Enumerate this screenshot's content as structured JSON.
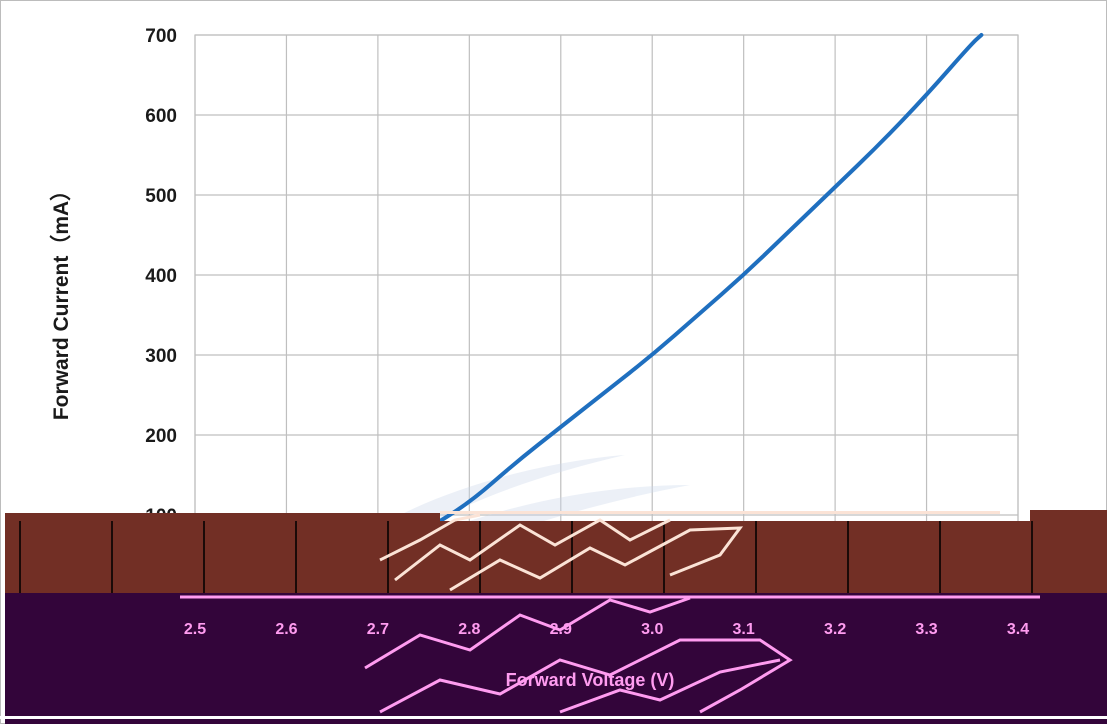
{
  "chart_data": {
    "type": "line",
    "title": "",
    "ylabel": "Forward Current（mA）",
    "xlabel": "Forward Voltage (V)",
    "ylim": [
      0,
      700
    ],
    "xlim": [
      2.5,
      3.4
    ],
    "yticks": [
      "100",
      "200",
      "300",
      "400",
      "500",
      "600",
      "700"
    ],
    "xticks": [
      "2.5",
      "2.6",
      "2.7",
      "2.8",
      "2.9",
      "3.0",
      "3.1",
      "3.2",
      "3.3",
      "3.4"
    ],
    "grid": true,
    "series": [
      {
        "color": "#1f6fbf",
        "x": [
          2.62,
          2.65,
          2.7,
          2.75,
          2.8,
          2.85,
          2.9,
          2.95,
          3.0,
          3.05,
          3.1,
          3.15,
          3.2,
          3.25,
          3.3,
          3.35,
          3.36
        ],
        "y": [
          0,
          10,
          40,
          80,
          115,
          165,
          210,
          255,
          300,
          350,
          400,
          455,
          510,
          565,
          625,
          690,
          700
        ]
      }
    ]
  },
  "colors": {
    "line": "#1f6fbf",
    "grid": "#bfbfbf",
    "band_brown": "#722f25",
    "band_purple": "#33053a",
    "artifact_pink": "#ff9cf0"
  }
}
